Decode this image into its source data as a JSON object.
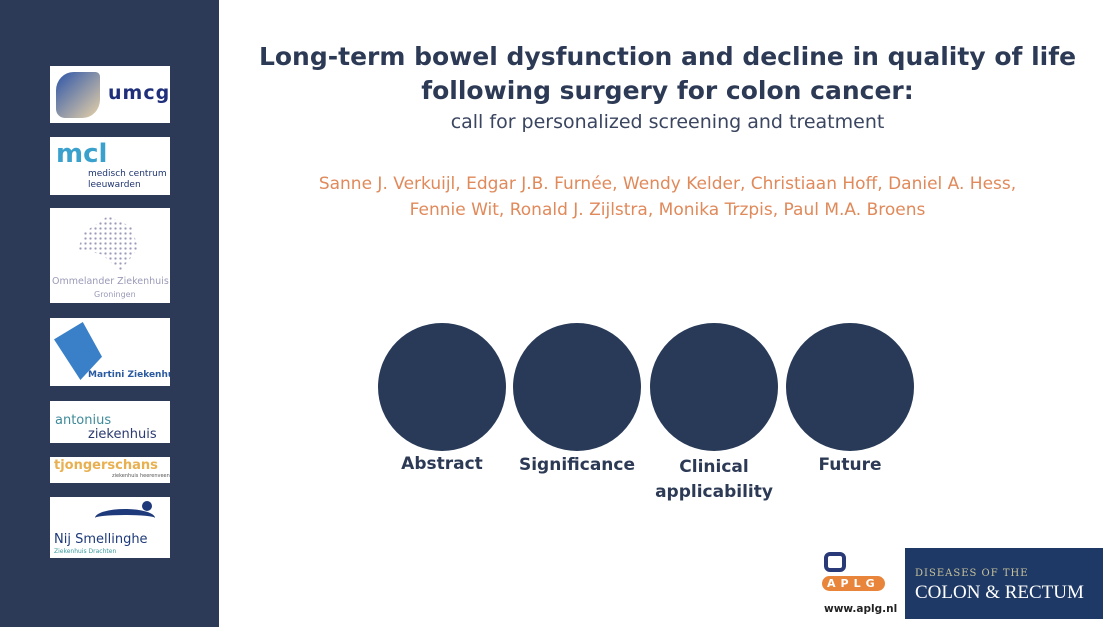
{
  "sidebar": {
    "logos": [
      {
        "name": "umcg",
        "text": "umcg"
      },
      {
        "name": "mcl",
        "text": "mcl",
        "sub1": "medisch centrum",
        "sub2": "leeuwarden"
      },
      {
        "name": "ommelander",
        "text": "Ommelander Ziekenhuis",
        "sub1": "Groningen"
      },
      {
        "name": "martini",
        "text": "Martini Ziekenhuis"
      },
      {
        "name": "antonius",
        "text": "antonius",
        "sub1": "ziekenhuis"
      },
      {
        "name": "tjongerschans",
        "text": "tjongerschans",
        "sub1": "ziekenhuis heerenveen"
      },
      {
        "name": "nij-smellinghe",
        "text": "Nij Smellinghe",
        "sub1": "Ziekenhuis Drachten"
      }
    ]
  },
  "title": {
    "line1": "Long-term bowel dysfunction and decline in quality of life",
    "line2": "following surgery for colon cancer:",
    "subtitle": "call for personalized screening and treatment"
  },
  "authors": {
    "line1": "Sanne J. Verkuijl, Edgar J.B. Furnée, Wendy Kelder, Christiaan Hoff, Daniel A. Hess,",
    "line2": "Fennie Wit, Ronald J. Zijlstra, Monika Trzpis, Paul M.A. Broens"
  },
  "sections": [
    {
      "label": "Abstract"
    },
    {
      "label": "Significance"
    },
    {
      "label": "Clinical applicability"
    },
    {
      "label": "Future"
    }
  ],
  "footer": {
    "aplg_letters": "APLG",
    "aplg_url": "www.aplg.nl",
    "journal_top": "DISEASES OF THE",
    "journal_main": "COLON & RECTUM"
  },
  "colors": {
    "sidebar": "#2c3a57",
    "circle": "#283a58",
    "authors": "#e0895a",
    "title": "#2d3a55"
  }
}
